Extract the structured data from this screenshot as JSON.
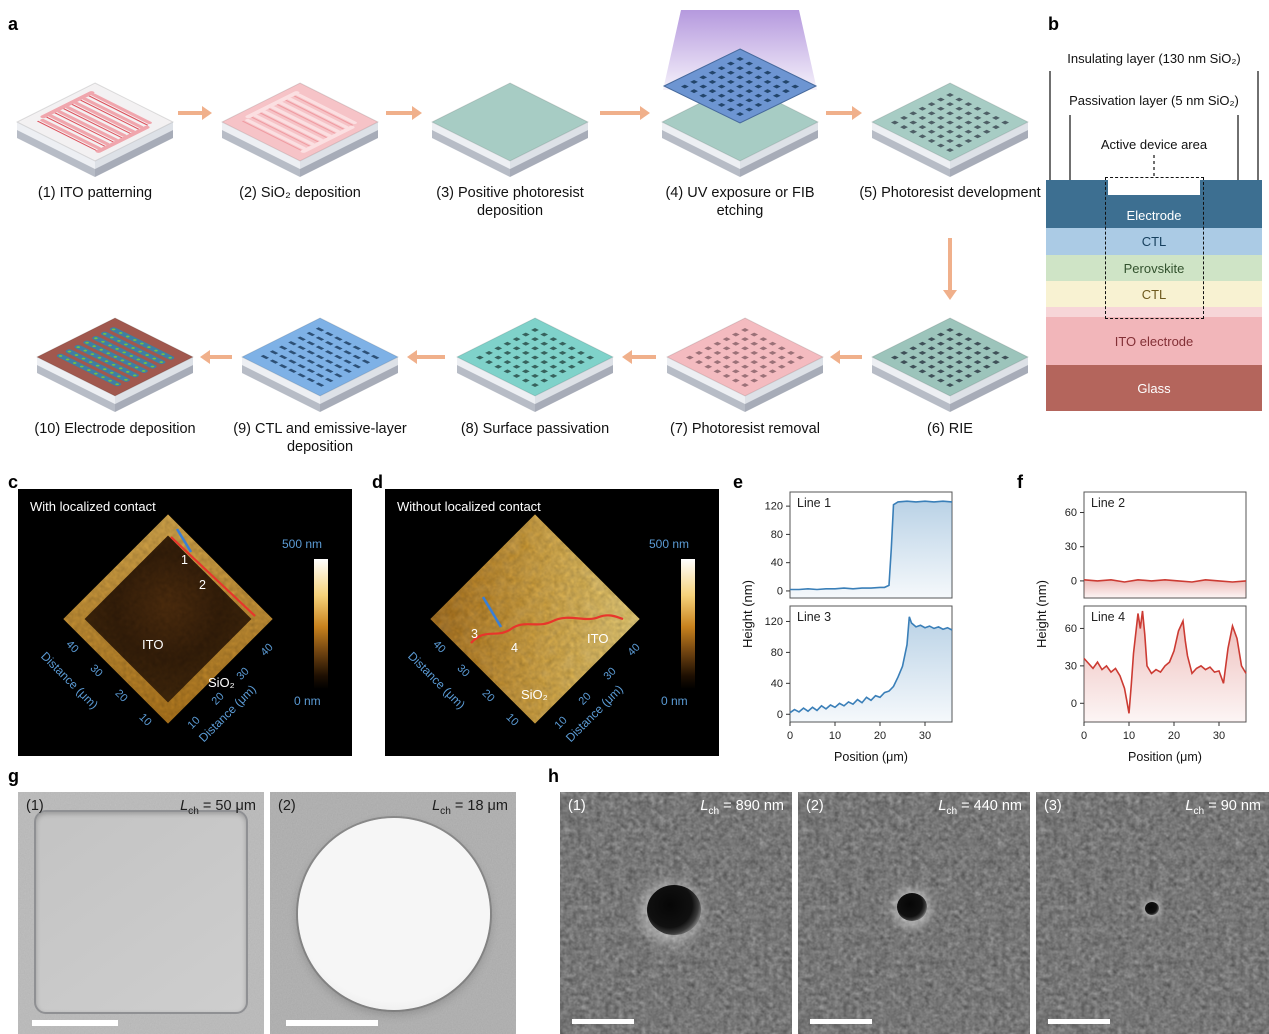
{
  "labels": {
    "a": "a",
    "b": "b",
    "c": "c",
    "d": "d",
    "e": "e",
    "f": "f",
    "g": "g",
    "h": "h"
  },
  "panel_a": {
    "arrow_color": "#f0b08b",
    "steps": [
      {
        "num": "(1)",
        "name": "ITO patterning",
        "style": "ito"
      },
      {
        "num": "(2)",
        "name": "SiO₂ deposition",
        "style": "sio2"
      },
      {
        "num": "(3)",
        "name": "Positive photoresist deposition",
        "style": "pr"
      },
      {
        "num": "(4)",
        "name": "UV exposure or FIB etching",
        "style": "uv"
      },
      {
        "num": "(5)",
        "name": "Photoresist development",
        "style": "dev"
      },
      {
        "num": "(6)",
        "name": "RIE",
        "style": "rie"
      },
      {
        "num": "(7)",
        "name": "Photoresist removal",
        "style": "strip"
      },
      {
        "num": "(8)",
        "name": "Surface passivation",
        "style": "passiv"
      },
      {
        "num": "(9)",
        "name": "CTL and emissive-layer deposition",
        "style": "ctl"
      },
      {
        "num": "(10)",
        "name": "Electrode deposition",
        "style": "electrode"
      }
    ],
    "chip_colors": {
      "ito": {
        "top": "#f3f1f2",
        "pattern": "stripes",
        "pc": "#f0a6ad",
        "pc2": "#dd4f5a"
      },
      "sio2": {
        "top": "#f6c3c7",
        "pattern": "stripes",
        "pc": "#fbdfe1",
        "pc2": "#ef9ba1"
      },
      "pr": {
        "top": "#a7ccc4",
        "pattern": "solid"
      },
      "uv": {
        "top": "#a7ccc4",
        "pattern": "uv",
        "plate": "#6d95d2",
        "pc": "#23456b",
        "beam": "#a887d8"
      },
      "dev": {
        "top": "#a7ccc4",
        "pattern": "dots",
        "pc": "#4e5f66"
      },
      "rie": {
        "top": "#9cc4bb",
        "pattern": "dots",
        "pc": "#3f5058"
      },
      "strip": {
        "top": "#f4bbc0",
        "pattern": "dots",
        "pc": "#9b7178"
      },
      "passiv": {
        "top": "#7fd2ca",
        "pattern": "dots",
        "pc": "#37625d"
      },
      "ctl": {
        "top": "#7eb1e6",
        "pattern": "dashes",
        "pc": "#2d5076"
      },
      "electrode": {
        "top": "#a1584e",
        "pattern": "pads",
        "pc": "#3e7fa3",
        "pc2": "#74c044"
      }
    }
  },
  "panel_b": {
    "annotations": {
      "insulating": "Insulating layer (130 nm SiO₂)",
      "passivation": "Passivation layer (5 nm SiO₂)",
      "active": "Active device area"
    },
    "layers": [
      {
        "name": "Electrode",
        "color": "#3d6f91",
        "text": "#ffffff"
      },
      {
        "name": "CTL",
        "color": "#abcbe5",
        "text": "#17405e"
      },
      {
        "name": "Perovskite",
        "color": "#cfe4c6",
        "text": "#33522e"
      },
      {
        "name": "CTL",
        "color": "#f8f2d2",
        "text": "#6e5a1e"
      },
      {
        "name": "",
        "color": "#f7d6d8",
        "text": "#000000"
      },
      {
        "name": "ITO electrode",
        "color": "#f2b6ba",
        "text": "#833036"
      },
      {
        "name": "Glass",
        "color": "#b4655c",
        "text": "#ffffff"
      }
    ]
  },
  "panel_c": {
    "title": "With localized contact",
    "colorbar_max": "500 nm",
    "colorbar_min": "0 nm",
    "region_inner": "ITO",
    "region_outer": "SiO₂",
    "profile_marks": [
      "1",
      "2"
    ],
    "axis_left_title": "Distance (μm)",
    "axis_right_title": "Distance (μm)",
    "ticks_left": [
      "40",
      "30",
      "20",
      "10"
    ],
    "ticks_right": [
      "10",
      "20",
      "30",
      "40"
    ]
  },
  "panel_d": {
    "title": "Without localized contact",
    "colorbar_max": "500 nm",
    "colorbar_min": "0 nm",
    "region_inner": "ITO",
    "region_outer": "SiO₂",
    "profile_marks": [
      "3",
      "4"
    ],
    "axis_left_title": "Distance (μm)",
    "axis_right_title": "Distance (μm)",
    "ticks_left": [
      "40",
      "30",
      "20",
      "10"
    ],
    "ticks_right": [
      "10",
      "20",
      "30",
      "40"
    ]
  },
  "panel_e": {
    "ylabel": "Height (nm)"
  },
  "panel_f": {
    "ylabel": "Height (nm)"
  },
  "chart_data": [
    {
      "id": "e1",
      "type": "area",
      "name": "Line 1",
      "color": "#3a7fb8",
      "xlim": [
        0,
        36
      ],
      "ylim": [
        -10,
        140
      ],
      "yticks": [
        0,
        40,
        80,
        120
      ],
      "xticks": [
        0,
        10,
        20,
        30
      ],
      "show_x": false,
      "xlabel": "",
      "x": [
        0,
        2,
        4,
        6,
        8,
        10,
        12,
        14,
        16,
        18,
        20,
        21,
        22,
        22.5,
        23,
        24,
        26,
        28,
        30,
        32,
        34,
        36
      ],
      "y": [
        2,
        2,
        3,
        2,
        3,
        3,
        4,
        3,
        4,
        4,
        5,
        5,
        8,
        60,
        122,
        126,
        127,
        126,
        127,
        126,
        127,
        126
      ]
    },
    {
      "id": "e2",
      "type": "area",
      "name": "Line 3",
      "color": "#3a7fb8",
      "xlim": [
        0,
        36
      ],
      "ylim": [
        -10,
        140
      ],
      "yticks": [
        0,
        40,
        80,
        120
      ],
      "xticks": [
        0,
        10,
        20,
        30
      ],
      "show_x": true,
      "xlabel": "Position (μm)",
      "x": [
        0,
        1,
        2,
        3,
        4,
        5,
        6,
        7,
        8,
        9,
        10,
        11,
        12,
        13,
        14,
        15,
        16,
        17,
        18,
        19,
        20,
        21,
        22,
        23,
        24,
        25,
        26,
        26.5,
        27,
        28,
        29,
        30,
        31,
        32,
        33,
        34,
        35,
        36
      ],
      "y": [
        2,
        6,
        3,
        8,
        4,
        9,
        5,
        11,
        7,
        12,
        9,
        14,
        11,
        16,
        13,
        19,
        15,
        22,
        18,
        24,
        22,
        28,
        30,
        36,
        48,
        62,
        90,
        126,
        118,
        113,
        115,
        112,
        114,
        111,
        113,
        110,
        112,
        109
      ]
    },
    {
      "id": "f1",
      "type": "area",
      "name": "Line 2",
      "color": "#cc3b33",
      "xlim": [
        0,
        36
      ],
      "ylim": [
        -15,
        78
      ],
      "yticks": [
        0,
        30,
        60
      ],
      "xticks": [
        0,
        10,
        20,
        30
      ],
      "show_x": false,
      "xlabel": "",
      "x": [
        0,
        3,
        6,
        9,
        12,
        15,
        18,
        21,
        24,
        27,
        30,
        33,
        36
      ],
      "y": [
        1,
        0,
        1,
        -1,
        1,
        0,
        1,
        0,
        -1,
        1,
        0,
        -1,
        0
      ]
    },
    {
      "id": "f2",
      "type": "area",
      "name": "Line 4",
      "color": "#cc3b33",
      "xlim": [
        0,
        36
      ],
      "ylim": [
        -15,
        78
      ],
      "yticks": [
        0,
        30,
        60
      ],
      "xticks": [
        0,
        10,
        20,
        30
      ],
      "show_x": true,
      "xlabel": "Position (μm)",
      "x": [
        0,
        1,
        2,
        3,
        4,
        5,
        6,
        7,
        8,
        9,
        9.5,
        10,
        10.5,
        11,
        12,
        12.5,
        13,
        13.5,
        14,
        15,
        16,
        17,
        18,
        19,
        20,
        21,
        22,
        22.5,
        23,
        24,
        25,
        26,
        27,
        28,
        29,
        30,
        31,
        32,
        33,
        34,
        35,
        36
      ],
      "y": [
        36,
        32,
        28,
        33,
        27,
        30,
        25,
        28,
        22,
        12,
        2,
        -8,
        15,
        40,
        72,
        60,
        74,
        55,
        30,
        24,
        27,
        25,
        30,
        33,
        42,
        58,
        66,
        50,
        38,
        24,
        28,
        30,
        27,
        29,
        25,
        26,
        16,
        44,
        62,
        52,
        30,
        24
      ]
    }
  ],
  "panel_g": {
    "items": [
      {
        "num": "(1)",
        "lsym": "L",
        "lsub": "ch",
        "lval": " = 50 μm"
      },
      {
        "num": "(2)",
        "lsym": "L",
        "lsub": "ch",
        "lval": " = 18 μm"
      }
    ]
  },
  "panel_h": {
    "items": [
      {
        "num": "(1)",
        "lsym": "L",
        "lsub": "ch",
        "lval": " = 890 nm"
      },
      {
        "num": "(2)",
        "lsym": "L",
        "lsub": "ch",
        "lval": " = 440 nm"
      },
      {
        "num": "(3)",
        "lsym": "L",
        "lsub": "ch",
        "lval": " = 90 nm"
      }
    ]
  }
}
